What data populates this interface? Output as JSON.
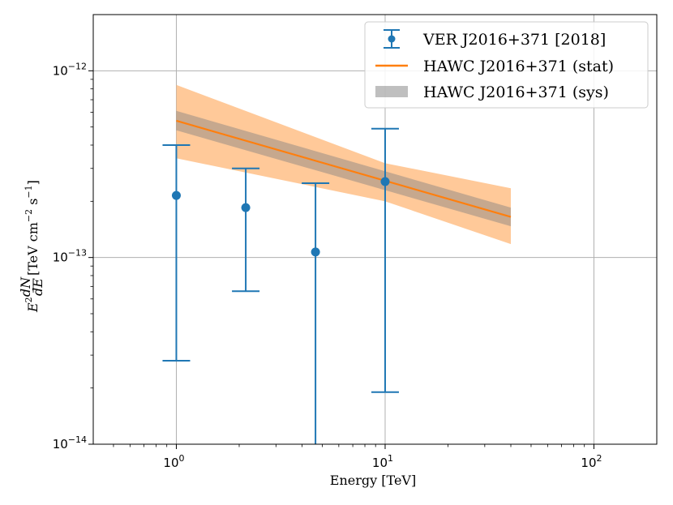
{
  "chart_data": {
    "type": "scatter",
    "x_scale": "log",
    "y_scale": "log",
    "xlim": [
      0.4,
      200
    ],
    "ylim": [
      1e-14,
      2e-12
    ],
    "grid": true,
    "xlabel": "Energy [TeV]",
    "ylabel": {
      "base": "E",
      "base_sup": "2",
      "frac_num": "dN",
      "frac_den": "dE",
      "units_main": "[TeV cm",
      "units_sup1": "−2",
      "units_mid": " s",
      "units_sup2": "−1",
      "units_end": "]"
    },
    "x_ticks": [
      {
        "value": 1,
        "base": "10",
        "exp": "0"
      },
      {
        "value": 10,
        "base": "10",
        "exp": "1"
      },
      {
        "value": 100,
        "base": "10",
        "exp": "2"
      }
    ],
    "y_ticks": [
      {
        "value": 1e-14,
        "base": "10",
        "exp": "−14"
      },
      {
        "value": 1e-13,
        "base": "10",
        "exp": "−13"
      },
      {
        "value": 1e-12,
        "base": "10",
        "exp": "−12"
      }
    ],
    "series": [
      {
        "name": "VER J2016+371 [2018]",
        "kind": "errorbar",
        "color": "#1f77b4",
        "points": [
          {
            "x": 1.0,
            "y": 2.15e-13,
            "ylo": 2.8e-14,
            "yhi": 4e-13
          },
          {
            "x": 2.15,
            "y": 1.85e-13,
            "ylo": 6.6e-14,
            "yhi": 3e-13
          },
          {
            "x": 4.64,
            "y": 1.07e-13,
            "ylo": 1e-14,
            "yhi": 2.5e-13
          },
          {
            "x": 10.0,
            "y": 2.55e-13,
            "ylo": 1.9e-14,
            "yhi": 4.9e-13
          }
        ]
      },
      {
        "name": "HAWC J2016+371 (stat)",
        "kind": "line",
        "color": "#ff7f0e",
        "x": [
          1.0,
          40.0
        ],
        "y": [
          5.4e-13,
          1.65e-13
        ]
      },
      {
        "name": "HAWC J2016+371 (sys)",
        "kind": "band",
        "color": "#808080",
        "x": [
          1.0,
          40.0
        ],
        "ylo": [
          4.8e-13,
          1.47e-13
        ],
        "yhi": [
          6.1e-13,
          1.85e-13
        ]
      }
    ],
    "stat_band": {
      "color": "#ffbb80",
      "x": [
        1.0,
        10.0,
        40.0
      ],
      "ylo": [
        3.4e-13,
        2e-13,
        1.18e-13
      ],
      "yhi": [
        8.4e-13,
        3.2e-13,
        2.35e-13
      ]
    },
    "legend": {
      "placement": "upper right",
      "entries": [
        "VER J2016+371 [2018]",
        "HAWC J2016+371 (stat)",
        "HAWC J2016+371 (sys)"
      ]
    }
  }
}
